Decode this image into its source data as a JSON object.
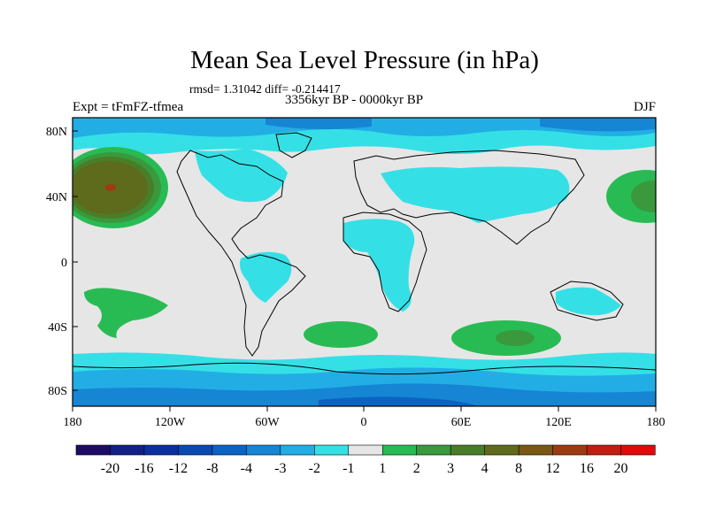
{
  "title": "Mean Sea Level Pressure (in hPa)",
  "stats_text": "rmsd= 1.31042 diff= -0.214417",
  "period": "3356kyr BP - 0000kyr BP",
  "experiment": "Expt = tFmFZ-tfmea",
  "season": "DJF",
  "lat_ticks": [
    "80N",
    "40N",
    "0",
    "40S",
    "80S"
  ],
  "lon_ticks": [
    "180",
    "120W",
    "60W",
    "0",
    "60E",
    "120E",
    "180"
  ],
  "colorbar": {
    "labels": [
      "-20",
      "-16",
      "-12",
      "-8",
      "-4",
      "-3",
      "-2",
      "-1",
      "1",
      "2",
      "3",
      "4",
      "8",
      "12",
      "16",
      "20"
    ],
    "colors": [
      "#1e0b63",
      "#121f86",
      "#0c2f9e",
      "#0a48b2",
      "#0b63c2",
      "#1685d4",
      "#22aee5",
      "#34e0e6",
      "#e6e6e6",
      "#29bb53",
      "#39993c",
      "#497e28",
      "#5e6a1c",
      "#7c5713",
      "#9c3c10",
      "#c01e10",
      "#e00a0a"
    ]
  },
  "colors": {
    "neutral": "#e6e6e6",
    "cyan": "#34e0e6",
    "light_blue": "#22aee5",
    "mid_blue": "#1685d4",
    "deep_blue": "#0b63c2",
    "green": "#29bb53",
    "dark_green": "#39993c",
    "olive": "#497e28",
    "brown": "#5e6a1c",
    "red_core": "#9c3c10"
  }
}
